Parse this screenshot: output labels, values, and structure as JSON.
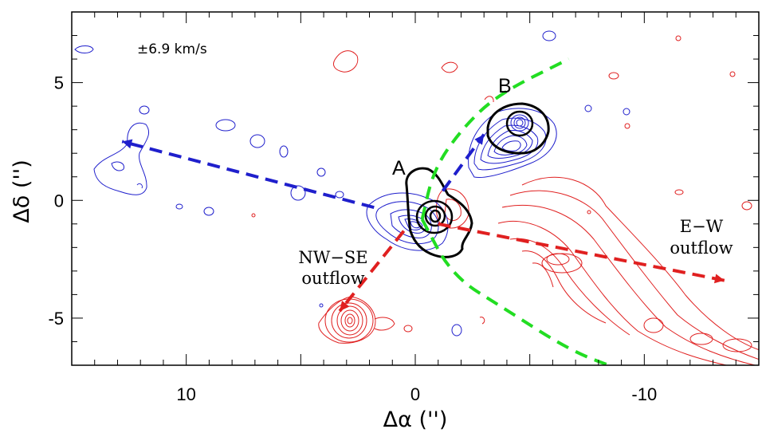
{
  "chart_data": {
    "type": "contour",
    "title": "",
    "velocity_label": "±6.9 km/s",
    "xlabel": "Δα ('')",
    "ylabel": "Δδ ('')",
    "xlim": [
      15,
      -15
    ],
    "ylim": [
      -7,
      8
    ],
    "x_ticks": [
      10,
      0,
      -10
    ],
    "x_tick_labels": [
      "10",
      "0",
      "-10"
    ],
    "y_ticks": [
      5,
      0,
      -5
    ],
    "y_tick_labels": [
      "5",
      "0",
      "-5"
    ],
    "sources": [
      {
        "label": "A",
        "x": -0.3,
        "y": -0.7
      },
      {
        "label": "B",
        "x": -4.0,
        "y": 3.3
      }
    ],
    "outflow_labels": [
      {
        "lines": [
          "NW−SE",
          "outflow"
        ]
      },
      {
        "lines": [
          "E−W",
          "outflow"
        ]
      }
    ],
    "colors": {
      "blue_lobe": "#1f1fcc",
      "red_lobe": "#e02020",
      "cavity": "#22dd22",
      "continuum": "#000000"
    },
    "arrows": [
      {
        "color": "blue",
        "from": [
          1.8,
          -0.3
        ],
        "to": [
          12.8,
          2.5
        ]
      },
      {
        "color": "blue",
        "from": [
          -1.2,
          0.4
        ],
        "to": [
          -3.0,
          2.8
        ]
      },
      {
        "color": "red",
        "from": [
          -1.0,
          -1.0
        ],
        "to": [
          -13.5,
          -3.4
        ]
      },
      {
        "color": "red",
        "from": [
          0.5,
          -1.3
        ],
        "to": [
          3.3,
          -4.7
        ]
      }
    ],
    "cavity_arcs": [
      [
        [
          -0.3,
          -0.8
        ],
        [
          -0.8,
          1.3
        ],
        [
          -2.0,
          3.0
        ],
        [
          -3.6,
          4.5
        ],
        [
          -6.7,
          6.0
        ]
      ],
      [
        [
          -0.3,
          -0.8
        ],
        [
          -1.6,
          -3.2
        ],
        [
          -3.9,
          -4.6
        ],
        [
          -6.8,
          -6.4
        ],
        [
          -9.0,
          -7.2
        ]
      ]
    ]
  }
}
